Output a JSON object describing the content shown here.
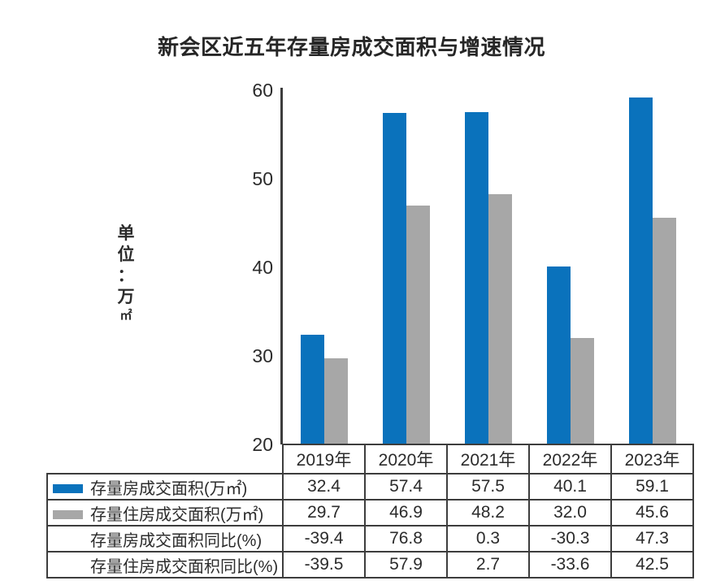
{
  "title": "新会区近五年存量房成交面积与增速情况",
  "colors": {
    "series_blue": "#0a72bc",
    "series_gray": "#a7a7a7",
    "axis": "#3d3d3d",
    "text": "#2b2b2b",
    "title_text": "#262626",
    "background": "#ffffff"
  },
  "chart_data": {
    "type": "bar",
    "title": "新会区近五年存量房成交面积与增速情况",
    "unit_label": "单位：万㎡",
    "categories": [
      "2019年",
      "2020年",
      "2021年",
      "2022年",
      "2023年"
    ],
    "series": [
      {
        "name": "存量房成交面积(万㎡)",
        "color": "#0a72bc",
        "values": [
          32.4,
          57.4,
          57.5,
          40.1,
          59.1
        ]
      },
      {
        "name": "存量住房成交面积(万㎡)",
        "color": "#a7a7a7",
        "values": [
          29.7,
          46.9,
          48.2,
          32.0,
          45.6
        ]
      }
    ],
    "y_axis": {
      "min": 20,
      "max": 60,
      "ticks": [
        60,
        50,
        40,
        30,
        20
      ]
    },
    "grid": false,
    "legend_position": "table-left-column",
    "table_rows": [
      {
        "label": "存量房成交面积(万㎡)",
        "swatch": "#0a72bc",
        "values": [
          "32.4",
          "57.4",
          "57.5",
          "40.1",
          "59.1"
        ]
      },
      {
        "label": "存量住房成交面积(万㎡)",
        "swatch": "#a7a7a7",
        "values": [
          "29.7",
          "46.9",
          "48.2",
          "32.0",
          "45.6"
        ]
      },
      {
        "label": "存量房成交面积同比(%)",
        "swatch": null,
        "values": [
          "-39.4",
          "76.8",
          "0.3",
          "-30.3",
          "47.3"
        ]
      },
      {
        "label": "存量住房成交面积同比(%)",
        "swatch": null,
        "values": [
          "-39.5",
          "57.9",
          "2.7",
          "-33.6",
          "42.5"
        ]
      }
    ]
  }
}
